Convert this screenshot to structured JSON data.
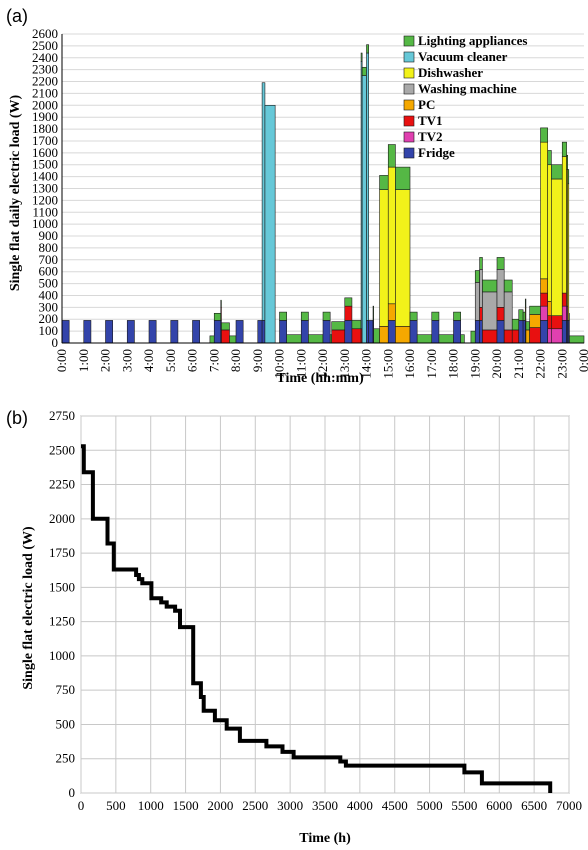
{
  "chart_data": [
    {
      "panel_label": "(a)",
      "type": "area",
      "stacked": true,
      "xlabel": "Time (hh:mm)",
      "ylabel": "Single flat daily electric load (W)",
      "ylim": [
        0,
        2600
      ],
      "yticks": [
        0,
        100,
        200,
        300,
        400,
        500,
        600,
        700,
        800,
        900,
        1000,
        1100,
        1200,
        1300,
        1400,
        1500,
        1600,
        1700,
        1800,
        1900,
        2000,
        2100,
        2200,
        2300,
        2400,
        2500,
        2600
      ],
      "xlim": [
        0,
        24
      ],
      "xticks": [
        "0:00",
        "1:00",
        "2:00",
        "3:00",
        "4:00",
        "5:00",
        "6:00",
        "7:00",
        "8:00",
        "9:00",
        "10:00",
        "11:00",
        "12:00",
        "13:00",
        "14:00",
        "15:00",
        "16:00",
        "17:00",
        "18:00",
        "19:00",
        "20:00",
        "21:00",
        "22:00",
        "23:00",
        "0:00"
      ],
      "grid": true,
      "legend_position": "top-right",
      "colors": {
        "Fridge": "#3344aa",
        "TV2": "#e040b0",
        "TV1": "#e81010",
        "PC": "#f5a800",
        "Washing machine": "#a9a9a9",
        "Dishwasher": "#f2f21a",
        "Vacuum cleaner": "#66c8d8",
        "Lighting appliances": "#55b845"
      },
      "legend": [
        "Lighting appliances",
        "Vacuum cleaner",
        "Dishwasher",
        "Washing machine",
        "PC",
        "TV1",
        "TV2",
        "Fridge"
      ],
      "series": [
        {
          "name": "Fridge",
          "intervals": [
            [
              0,
              0.33,
              190
            ],
            [
              1,
              1.33,
              190
            ],
            [
              2,
              2.33,
              190
            ],
            [
              3,
              3.33,
              190
            ],
            [
              4,
              4.33,
              190
            ],
            [
              5,
              5.33,
              190
            ],
            [
              6,
              6.33,
              190
            ],
            [
              7,
              7.33,
              190
            ],
            [
              8,
              8.33,
              190
            ],
            [
              9,
              9.33,
              190
            ],
            [
              10,
              10.33,
              190
            ],
            [
              11,
              11.33,
              190
            ],
            [
              12,
              12.33,
              190
            ],
            [
              13,
              13.33,
              190
            ],
            [
              14,
              14.33,
              190
            ],
            [
              15,
              15.33,
              190
            ],
            [
              16,
              16.33,
              190
            ],
            [
              17,
              17.33,
              190
            ],
            [
              18,
              18.33,
              190
            ],
            [
              19,
              19.33,
              190
            ],
            [
              20,
              20.33,
              190
            ],
            [
              21,
              21.33,
              190
            ],
            [
              22,
              22.33,
              190
            ],
            [
              23,
              23.33,
              190
            ]
          ]
        },
        {
          "name": "TV2",
          "intervals": [
            [
              22,
              23.25,
              120
            ]
          ]
        },
        {
          "name": "TV1",
          "intervals": [
            [
              7.3,
              7.7,
              110
            ],
            [
              12.4,
              13,
              110
            ],
            [
              13,
              13.8,
              120
            ],
            [
              19.2,
              21,
              110
            ],
            [
              21.5,
              22,
              130
            ],
            [
              22,
              23.2,
              110
            ]
          ]
        },
        {
          "name": "PC",
          "intervals": [
            [
              14.6,
              16,
              140
            ],
            [
              21.3,
              22,
              110
            ],
            [
              22,
              22.5,
              120
            ]
          ]
        },
        {
          "name": "Washing machine",
          "intervals": [
            [
              19,
              20.7,
              320
            ]
          ]
        },
        {
          "name": "Dishwasher",
          "intervals": [
            [
              14.6,
              16,
              1150
            ],
            [
              22,
              23.3,
              1150
            ]
          ]
        },
        {
          "name": "Vacuum cleaner",
          "intervals": [
            [
              9.2,
              9.8,
              2000
            ],
            [
              13.75,
              14.1,
              2250
            ]
          ]
        },
        {
          "name": "Lighting appliances",
          "intervals": [
            [
              6.8,
              7.3,
              60
            ],
            [
              7.3,
              8,
              60
            ],
            [
              10,
              12,
              70
            ],
            [
              12,
              14.1,
              70
            ],
            [
              14.3,
              15,
              120
            ],
            [
              15,
              16,
              190
            ],
            [
              16,
              18.5,
              70
            ],
            [
              18.8,
              20.7,
              100
            ],
            [
              20.7,
              21.2,
              90
            ],
            [
              21.2,
              22,
              70
            ],
            [
              22,
              23.3,
              120
            ],
            [
              23.3,
              24,
              60
            ]
          ]
        }
      ]
    },
    {
      "panel_label": "(b)",
      "type": "line",
      "xlabel": "Time (h)",
      "ylabel": "Single flat electric load (W)",
      "xlim": [
        0,
        7000
      ],
      "ylim": [
        0,
        2750
      ],
      "xticks": [
        0,
        500,
        1000,
        1500,
        2000,
        2500,
        3000,
        3500,
        4000,
        4500,
        5000,
        5500,
        6000,
        6500,
        7000
      ],
      "yticks": [
        0,
        250,
        500,
        750,
        1000,
        1250,
        1500,
        1750,
        2000,
        2250,
        2500,
        2750
      ],
      "grid": true,
      "series": [
        {
          "name": "",
          "color": "#000000",
          "x": [
            0,
            0,
            40,
            40,
            170,
            170,
            380,
            380,
            470,
            470,
            790,
            790,
            830,
            830,
            880,
            880,
            1010,
            1010,
            1150,
            1150,
            1230,
            1230,
            1350,
            1350,
            1420,
            1420,
            1610,
            1610,
            1720,
            1720,
            1760,
            1760,
            1920,
            1920,
            2090,
            2090,
            2280,
            2280,
            2660,
            2660,
            2890,
            2890,
            3050,
            3050,
            3720,
            3720,
            3800,
            3800,
            5500,
            5500,
            5750,
            5750,
            6730,
            6730
          ],
          "y": [
            2530,
            2530,
            2530,
            2340,
            2340,
            2000,
            2000,
            1820,
            1820,
            1630,
            1630,
            1590,
            1590,
            1560,
            1560,
            1530,
            1530,
            1420,
            1420,
            1390,
            1390,
            1360,
            1360,
            1330,
            1330,
            1210,
            1210,
            800,
            800,
            700,
            700,
            600,
            600,
            530,
            530,
            470,
            470,
            380,
            380,
            340,
            340,
            300,
            300,
            260,
            260,
            230,
            230,
            200,
            200,
            150,
            150,
            70,
            70,
            0
          ]
        }
      ]
    }
  ]
}
